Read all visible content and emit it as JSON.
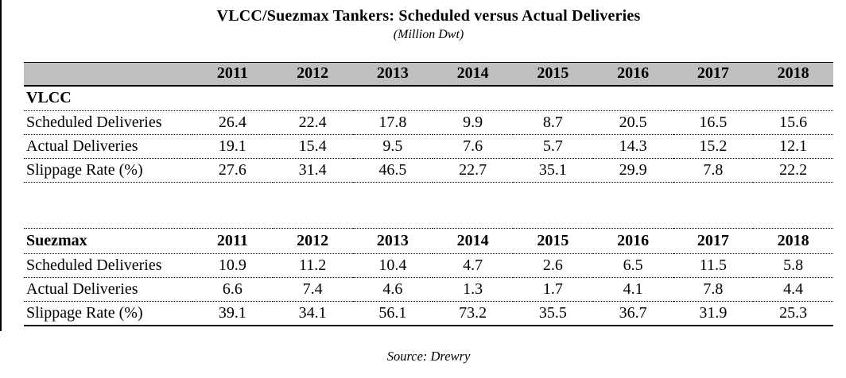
{
  "title": "VLCC/Suezmax Tankers: Scheduled versus Actual Deliveries",
  "subtitle": "(Million Dwt)",
  "source": "Source: Drewry",
  "years": [
    "2011",
    "2012",
    "2013",
    "2014",
    "2015",
    "2016",
    "2017",
    "2018"
  ],
  "tables": [
    {
      "id": "vlcc",
      "header_label": "",
      "group_row": "VLCC",
      "rows": [
        {
          "label": "Scheduled Deliveries",
          "values": [
            "26.4",
            "22.4",
            "17.8",
            "9.9",
            "8.7",
            "20.5",
            "16.5",
            "15.6"
          ]
        },
        {
          "label": "Actual Deliveries",
          "values": [
            "19.1",
            "15.4",
            "9.5",
            "7.6",
            "5.7",
            "14.3",
            "15.2",
            "12.1"
          ]
        },
        {
          "label": "Slippage Rate (%)",
          "values": [
            "27.6",
            "31.4",
            "46.5",
            "22.7",
            "35.1",
            "29.9",
            "7.8",
            "22.2"
          ]
        }
      ]
    },
    {
      "id": "suezmax",
      "header_label": "Suezmax",
      "group_row": null,
      "rows": [
        {
          "label": "Scheduled Deliveries",
          "values": [
            "10.9",
            "11.2",
            "10.4",
            "4.7",
            "2.6",
            "6.5",
            "11.5",
            "5.8"
          ]
        },
        {
          "label": "Actual Deliveries",
          "values": [
            "6.6",
            "7.4",
            "4.6",
            "1.3",
            "1.7",
            "4.1",
            "7.8",
            "4.4"
          ]
        },
        {
          "label": "Slippage Rate (%)",
          "values": [
            "39.1",
            "34.1",
            "56.1",
            "73.2",
            "35.5",
            "36.7",
            "31.9",
            "25.3"
          ]
        }
      ]
    }
  ],
  "colors": {
    "header_bg": "#c0c0c0",
    "text": "#000000",
    "rule": "#000000"
  },
  "chart_data": {
    "type": "table",
    "title": "VLCC/Suezmax Tankers: Scheduled versus Actual Deliveries",
    "subtitle": "(Million Dwt)",
    "source": "Source: Drewry",
    "categories": [
      2011,
      2012,
      2013,
      2014,
      2015,
      2016,
      2017,
      2018
    ],
    "series": [
      {
        "group": "VLCC",
        "name": "Scheduled Deliveries",
        "values": [
          26.4,
          22.4,
          17.8,
          9.9,
          8.7,
          20.5,
          16.5,
          15.6
        ]
      },
      {
        "group": "VLCC",
        "name": "Actual Deliveries",
        "values": [
          19.1,
          15.4,
          9.5,
          7.6,
          5.7,
          14.3,
          15.2,
          12.1
        ]
      },
      {
        "group": "VLCC",
        "name": "Slippage Rate (%)",
        "values": [
          27.6,
          31.4,
          46.5,
          22.7,
          35.1,
          29.9,
          7.8,
          22.2
        ]
      },
      {
        "group": "Suezmax",
        "name": "Scheduled Deliveries",
        "values": [
          10.9,
          11.2,
          10.4,
          4.7,
          2.6,
          6.5,
          11.5,
          5.8
        ]
      },
      {
        "group": "Suezmax",
        "name": "Actual Deliveries",
        "values": [
          6.6,
          7.4,
          4.6,
          1.3,
          1.7,
          4.1,
          7.8,
          4.4
        ]
      },
      {
        "group": "Suezmax",
        "name": "Slippage Rate (%)",
        "values": [
          39.1,
          34.1,
          56.1,
          73.2,
          35.5,
          36.7,
          31.9,
          25.3
        ]
      }
    ]
  }
}
